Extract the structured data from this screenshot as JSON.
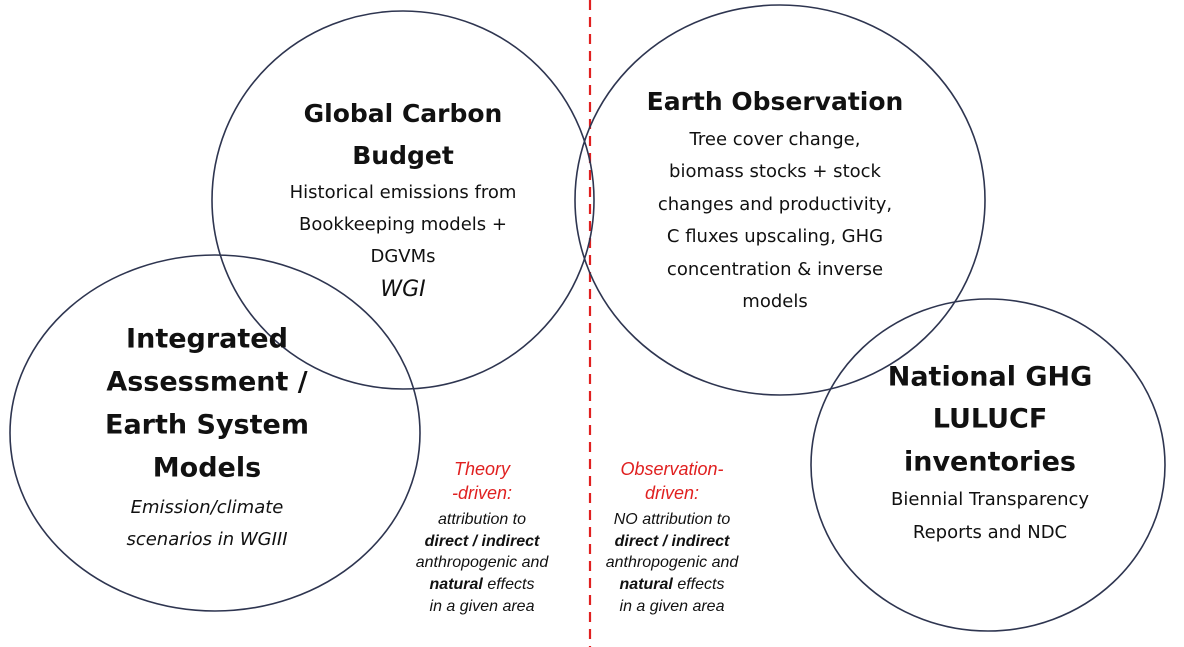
{
  "circles": [
    {
      "title": [
        "Global Carbon",
        "Budget"
      ],
      "lines": [
        "Historical emissions from",
        "Bookkeeping models +",
        "DGVMs"
      ],
      "tag": "WGI"
    },
    {
      "title": [
        "Earth Observation"
      ],
      "lines": [
        "Tree cover change,",
        "biomass stocks + stock",
        "changes and productivity,",
        "C fluxes upscaling, GHG",
        "concentration & inverse",
        "models"
      ]
    },
    {
      "title": [
        "Integrated",
        "Assessment /",
        "Earth System",
        "Models"
      ],
      "lines": [
        "Emission/climate",
        "scenarios in WGIII"
      ]
    },
    {
      "title": [
        "National GHG",
        "LULUCF",
        "inventories"
      ],
      "lines": [
        "Biennial Transparency",
        "Reports and NDC"
      ]
    }
  ],
  "annotations": [
    {
      "heading": [
        "Theory",
        "-driven:"
      ],
      "lines": [
        "attribution to",
        "direct / indirect",
        "anthropogenic and",
        "natural",
        " effects",
        "in a given area"
      ]
    },
    {
      "heading": [
        "Observation-",
        "driven:"
      ],
      "lines": [
        "NO attribution to",
        "direct / indirect",
        "anthropogenic and",
        "natural",
        " effects",
        "in a given area"
      ]
    }
  ]
}
